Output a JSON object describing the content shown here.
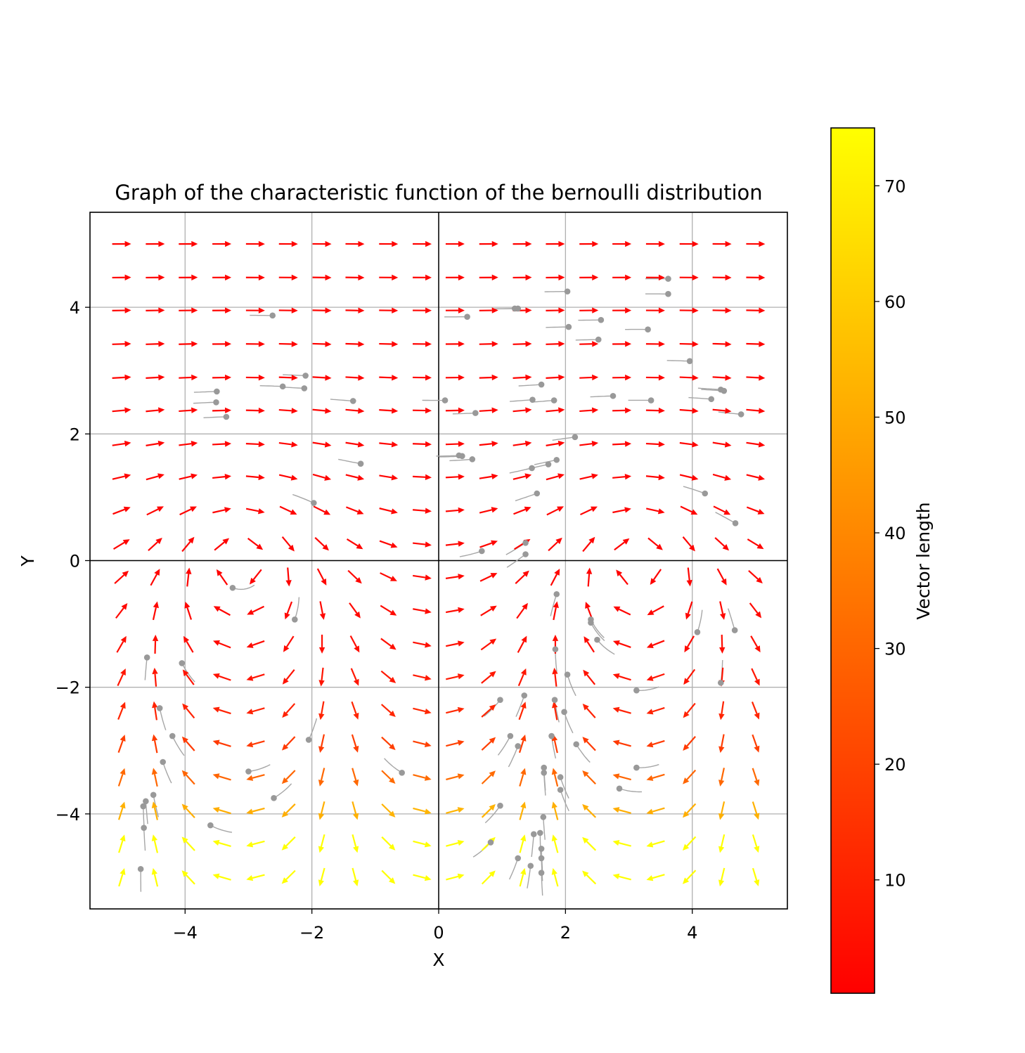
{
  "chart_data": {
    "type": "quiver",
    "title": "Graph of the characteristic function of the bernoulli distribution",
    "xlabel": "X",
    "ylabel": "Y",
    "xlim": [
      -5.5,
      5.5
    ],
    "ylim": [
      -5.5,
      5.5
    ],
    "xticks": [
      -4,
      -2,
      0,
      2,
      4
    ],
    "yticks": [
      -4,
      -2,
      0,
      2,
      4
    ],
    "xtick_labels": [
      "−4",
      "−2",
      "0",
      "2",
      "4"
    ],
    "ytick_labels": [
      "−4",
      "−2",
      "0",
      "2",
      "4"
    ],
    "grid": true,
    "axes_lines_at_zero": true,
    "field_formula": "(u, v) = (1 + cos x * e^(-y), sin x * e^(-y))",
    "grid_x": [
      -5,
      -4.47,
      -3.95,
      -3.42,
      -2.89,
      -2.37,
      -1.84,
      -1.32,
      -0.79,
      -0.26,
      0.26,
      0.79,
      1.32,
      1.84,
      2.37,
      2.89,
      3.42,
      3.95,
      4.47,
      5
    ],
    "grid_y": [
      -5,
      -4.47,
      -3.95,
      -3.42,
      -2.89,
      -2.37,
      -1.84,
      -1.32,
      -0.79,
      -0.26,
      0.26,
      0.79,
      1.32,
      1.84,
      2.37,
      2.89,
      3.42,
      3.95,
      4.47,
      5
    ],
    "particles": [
      [
        -2.62,
        3.87
      ],
      [
        -3.5,
        2.67
      ],
      [
        -3.51,
        2.5
      ],
      [
        -3.35,
        2.27
      ],
      [
        -2.46,
        2.75
      ],
      [
        -2.1,
        2.92
      ],
      [
        -2.12,
        2.72
      ],
      [
        -1.35,
        2.52
      ],
      [
        -1.23,
        1.53
      ],
      [
        -1.97,
        0.91
      ],
      [
        0.45,
        3.85
      ],
      [
        1.2,
        3.98
      ],
      [
        1.25,
        3.98
      ],
      [
        2.03,
        4.25
      ],
      [
        2.05,
        3.69
      ],
      [
        2.56,
        3.8
      ],
      [
        2.52,
        3.49
      ],
      [
        3.3,
        3.65
      ],
      [
        3.62,
        4.45
      ],
      [
        3.62,
        4.21
      ],
      [
        3.96,
        3.15
      ],
      [
        0.1,
        2.53
      ],
      [
        0.58,
        2.33
      ],
      [
        1.62,
        2.78
      ],
      [
        1.48,
        2.54
      ],
      [
        1.82,
        2.53
      ],
      [
        2.75,
        2.6
      ],
      [
        3.35,
        2.53
      ],
      [
        4.3,
        2.55
      ],
      [
        4.45,
        2.7
      ],
      [
        4.5,
        2.68
      ],
      [
        4.77,
        2.31
      ],
      [
        2.15,
        1.95
      ],
      [
        0.32,
        1.66
      ],
      [
        0.37,
        1.65
      ],
      [
        0.53,
        1.6
      ],
      [
        1.47,
        1.46
      ],
      [
        1.73,
        1.52
      ],
      [
        1.86,
        1.59
      ],
      [
        1.55,
        1.06
      ],
      [
        4.2,
        1.06
      ],
      [
        4.68,
        0.59
      ],
      [
        1.37,
        0.28
      ],
      [
        0.68,
        0.15
      ],
      [
        1.37,
        0.1
      ],
      [
        -3.25,
        -0.43
      ],
      [
        -2.27,
        -0.93
      ],
      [
        1.86,
        -0.53
      ],
      [
        2.4,
        -0.93
      ],
      [
        2.4,
        -0.98
      ],
      [
        2.5,
        -1.25
      ],
      [
        4.08,
        -1.13
      ],
      [
        4.67,
        -1.1
      ],
      [
        1.84,
        -1.4
      ],
      [
        -4.6,
        -1.53
      ],
      [
        -4.05,
        -1.62
      ],
      [
        2.03,
        -1.8
      ],
      [
        -4.4,
        -2.33
      ],
      [
        0.97,
        -2.2
      ],
      [
        1.35,
        -2.13
      ],
      [
        1.83,
        -2.2
      ],
      [
        1.98,
        -2.39
      ],
      [
        3.12,
        -2.05
      ],
      [
        4.45,
        -1.93
      ],
      [
        -4.2,
        -2.77
      ],
      [
        -2.05,
        -2.83
      ],
      [
        1.13,
        -2.77
      ],
      [
        1.25,
        -2.93
      ],
      [
        1.78,
        -2.77
      ],
      [
        2.17,
        -2.9
      ],
      [
        -4.35,
        -3.18
      ],
      [
        -3.0,
        -3.33
      ],
      [
        -0.58,
        -3.35
      ],
      [
        1.66,
        -3.27
      ],
      [
        1.66,
        -3.35
      ],
      [
        1.92,
        -3.42
      ],
      [
        3.12,
        -3.27
      ],
      [
        1.92,
        -3.62
      ],
      [
        2.85,
        -3.6
      ],
      [
        -2.6,
        -3.75
      ],
      [
        -4.5,
        -3.7
      ],
      [
        -4.62,
        -3.8
      ],
      [
        -4.66,
        -3.88
      ],
      [
        0.97,
        -3.87
      ],
      [
        1.65,
        -4.05
      ],
      [
        -3.6,
        -4.18
      ],
      [
        -4.65,
        -4.22
      ],
      [
        1.5,
        -4.32
      ],
      [
        1.6,
        -4.3
      ],
      [
        0.82,
        -4.45
      ],
      [
        1.62,
        -4.55
      ],
      [
        1.62,
        -4.7
      ],
      [
        1.25,
        -4.7
      ],
      [
        1.45,
        -4.82
      ],
      [
        -4.7,
        -4.87
      ],
      [
        1.62,
        -4.93
      ]
    ],
    "colorbar": {
      "label": "Vector length",
      "min": 0.2,
      "max": 75,
      "ticks": [
        10,
        20,
        30,
        40,
        50,
        60,
        70
      ],
      "colormap": "autumn",
      "color_low": "#ff0000",
      "color_high": "#ffff00"
    },
    "colors": {
      "grid": "#b0b0b0",
      "zero_line": "#000000",
      "particle": "#999999",
      "trail": "#a6a6a6"
    }
  }
}
